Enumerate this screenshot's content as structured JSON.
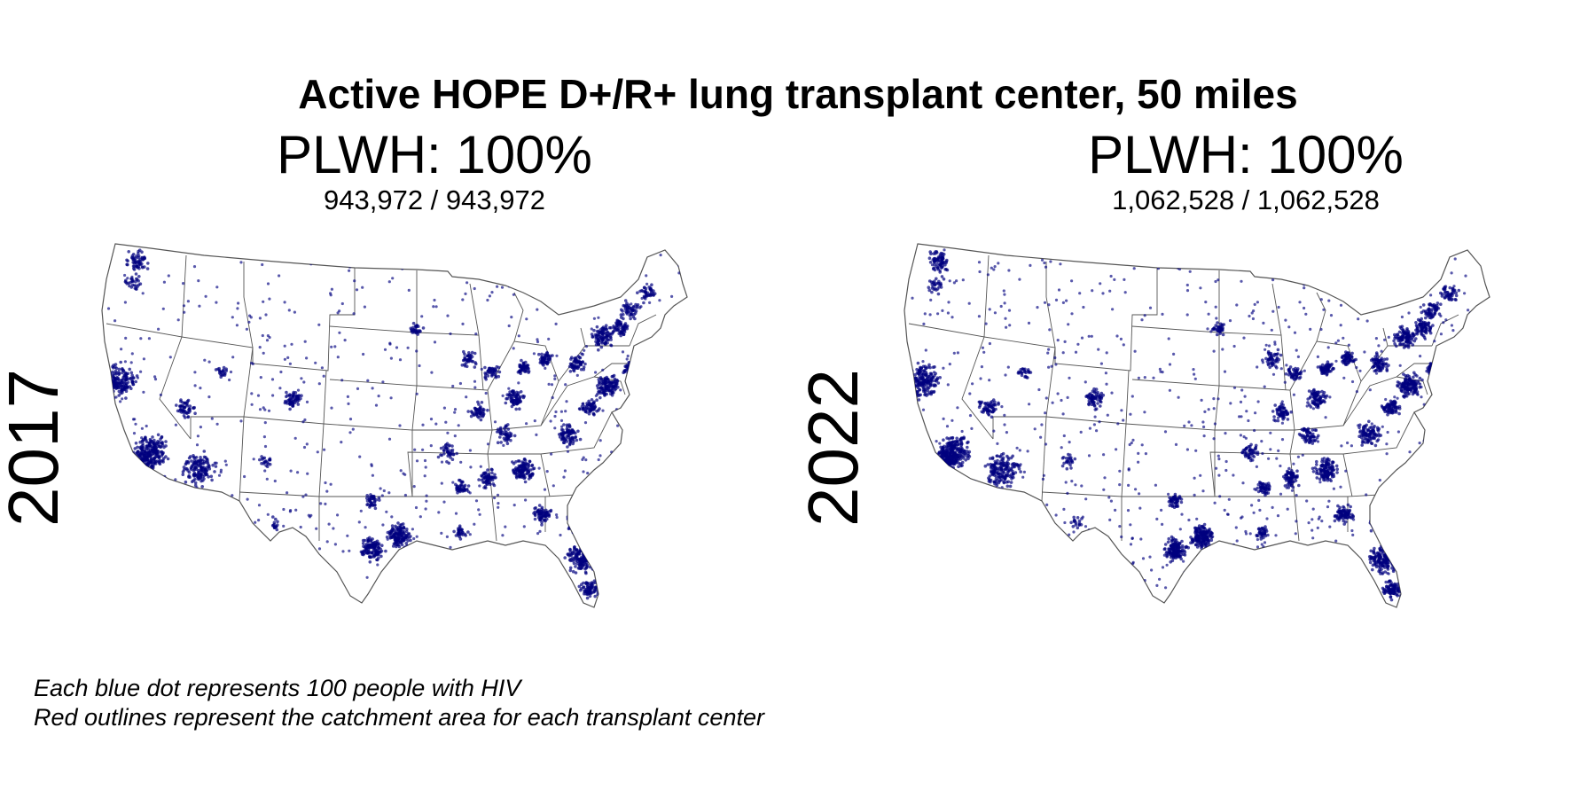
{
  "title": "Active HOPE D+/R+ lung transplant center, 50 miles",
  "panels": [
    {
      "year": "2017",
      "coverage": "PLWH: 100%",
      "counts": "943,972 / 943,972"
    },
    {
      "year": "2022",
      "coverage": "PLWH: 100%",
      "counts": "1,062,528 / 1,062,528"
    }
  ],
  "legend": {
    "line1": "Each blue dot represents 100 people with HIV",
    "line2": "Red outlines represent the catchment area for each transplant center"
  },
  "colors": {
    "dot": "#00007f",
    "state_border": "#555555",
    "background": "#ffffff"
  }
}
